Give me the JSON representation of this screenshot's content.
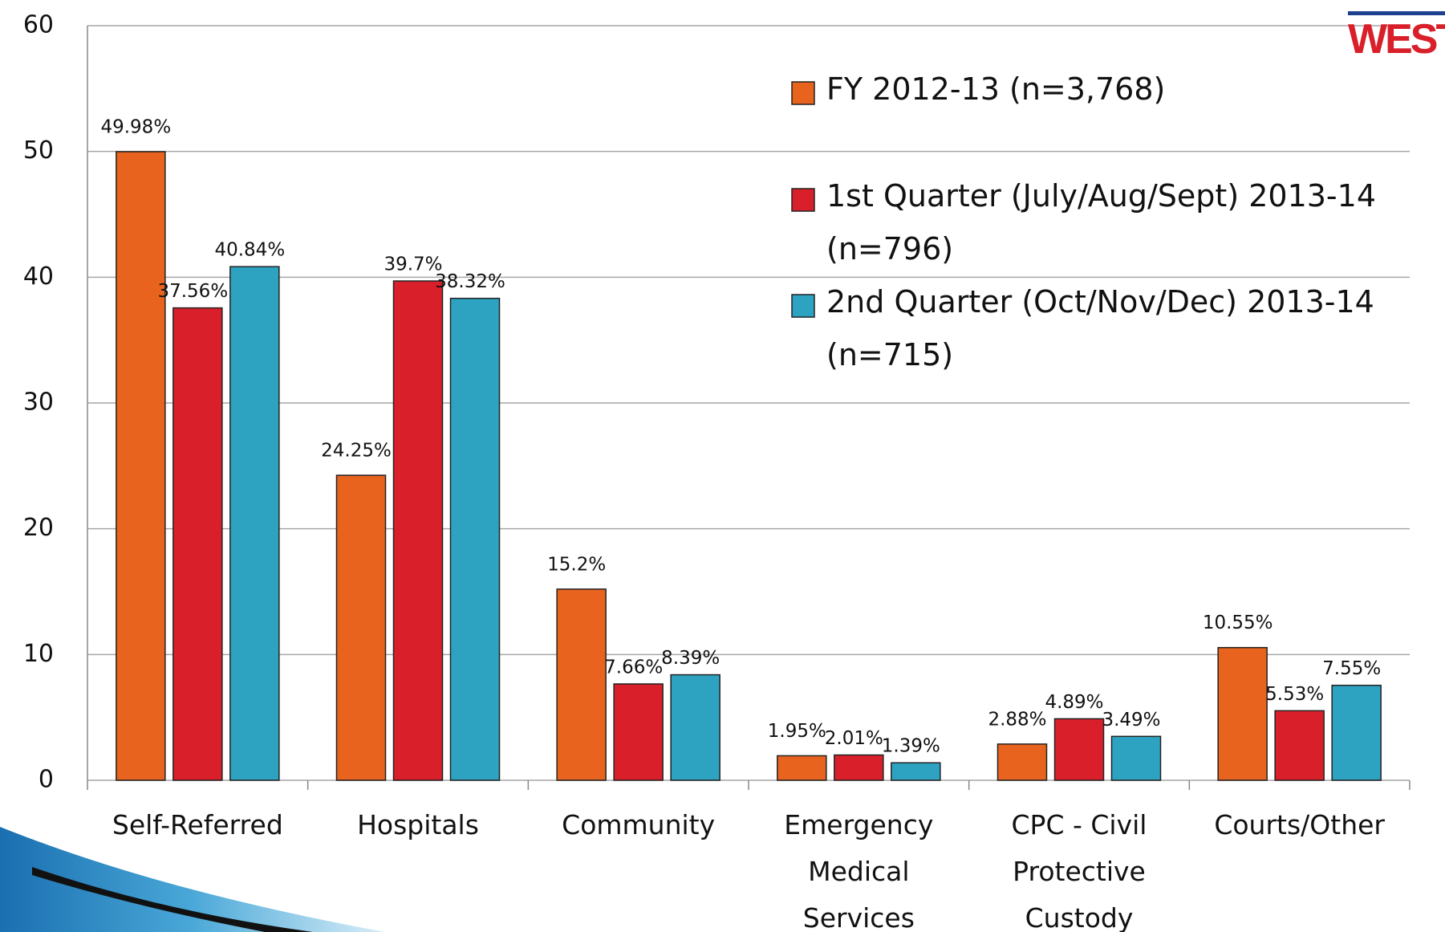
{
  "chart_data": {
    "type": "bar",
    "logo_text": "WEST",
    "categories": [
      "Self-Referred",
      "Hospitals",
      "Community",
      "Emergency Medical Services",
      "CPC - Civil Protective Custody",
      "Courts/Other"
    ],
    "series": [
      {
        "name": "FY 2012-13 (n=3,768)",
        "color": "#e8641e",
        "values": [
          49.98,
          24.25,
          15.2,
          1.95,
          2.88,
          10.55
        ],
        "value_labels": [
          "49.98%",
          "24.25%",
          "15.2%",
          "1.95%",
          "2.88%",
          "10.55%"
        ]
      },
      {
        "name": "1st Quarter (July/Aug/Sept) 2013-14 (n=796)",
        "color": "#d9202a",
        "values": [
          37.56,
          39.7,
          7.66,
          2.01,
          4.89,
          5.53
        ],
        "value_labels": [
          "37.56%",
          "39.7%",
          "7.66%",
          "2.01%",
          "4.89%",
          "5.53%"
        ]
      },
      {
        "name": "2nd Quarter (Oct/Nov/Dec) 2013-14 (n=715)",
        "color": "#2ea3c1",
        "values": [
          40.84,
          38.32,
          8.39,
          1.39,
          3.49,
          7.55
        ],
        "value_labels": [
          "40.84%",
          "38.32%",
          "8.39%",
          "1.39%",
          "3.49%",
          "7.55%"
        ]
      }
    ],
    "ylim": [
      0,
      60
    ],
    "yticks": [
      0,
      10,
      20,
      30,
      40,
      50,
      60
    ],
    "grid": true,
    "legend": "upper right"
  }
}
